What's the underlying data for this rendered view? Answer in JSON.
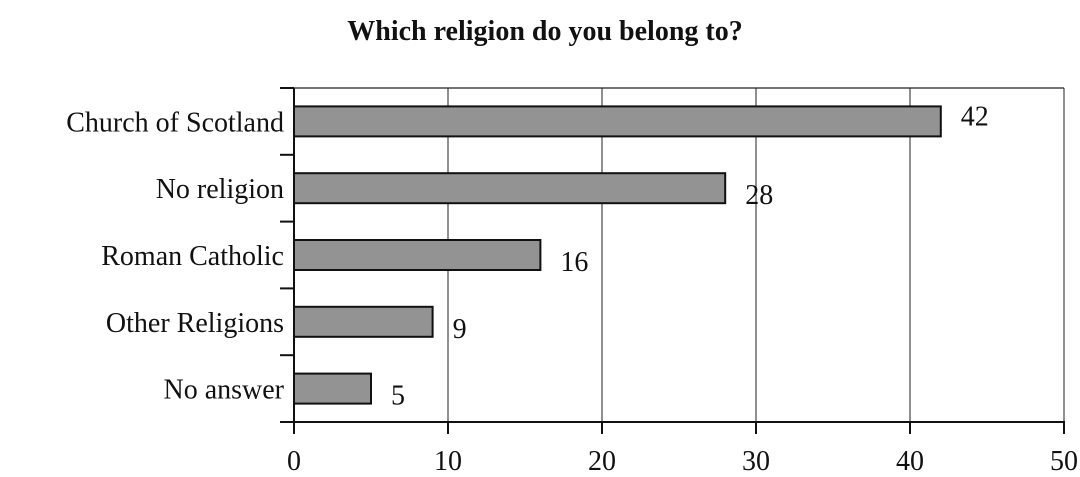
{
  "chart_data": {
    "type": "bar",
    "orientation": "horizontal",
    "title": "Which religion do you belong to?",
    "categories": [
      "Church of Scotland",
      "No religion",
      "Roman Catholic",
      "Other Religions",
      "No answer"
    ],
    "values": [
      42,
      28,
      16,
      9,
      5
    ],
    "xlim": [
      0,
      50
    ],
    "x_ticks": [
      "0",
      "10",
      "20",
      "30",
      "40",
      "50"
    ],
    "xlabel": "",
    "ylabel": "",
    "grid": "vertical",
    "data_labels": true,
    "bar_color": "#939393"
  }
}
